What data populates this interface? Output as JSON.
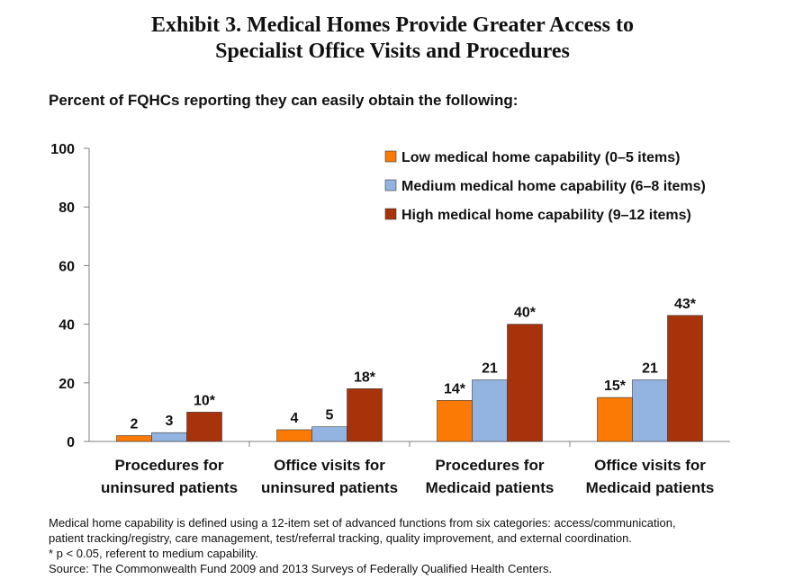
{
  "title_line1": "Exhibit 3. Medical Homes Provide Greater Access to",
  "title_line2": "Specialist Office Visits and Procedures",
  "subtitle": "Percent of FQHCs reporting they can easily obtain the following:",
  "chart_data": {
    "type": "bar",
    "categories": [
      [
        "Procedures for",
        "uninsured patients"
      ],
      [
        "Office visits for",
        "uninsured patients"
      ],
      [
        "Procedures for",
        "Medicaid patients"
      ],
      [
        "Office visits for",
        "Medicaid patients"
      ]
    ],
    "series": [
      {
        "name": "Low medical home capability (0–5 items)",
        "color": "#fb7a06",
        "values": [
          2,
          4,
          14,
          15
        ],
        "labels": [
          "2",
          "4",
          "14*",
          "15*"
        ]
      },
      {
        "name": "Medium medical home capability (6–8 items)",
        "color": "#93b3e1",
        "values": [
          3,
          5,
          21,
          21
        ],
        "labels": [
          "3",
          "5",
          "21",
          "21"
        ]
      },
      {
        "name": "High medical home capability (9–12 items)",
        "color": "#a8330b",
        "values": [
          10,
          18,
          40,
          43
        ],
        "labels": [
          "10*",
          "18*",
          "40*",
          "43*"
        ]
      }
    ],
    "ylim": [
      0,
      100
    ],
    "yticks": [
      0,
      20,
      40,
      60,
      80,
      100
    ],
    "legend": "top-right",
    "grid": false
  },
  "notes": {
    "line1": "Medical home capability is defined using a 12-item set of advanced functions from six categories: access/communication,",
    "line2": "patient tracking/registry, care management, test/referral tracking, quality improvement, and external coordination.",
    "line3": "* p < 0.05, referent to medium capability.",
    "line4": "Source: The Commonwealth Fund 2009 and 2013 Surveys of Federally Qualified Health Centers."
  }
}
